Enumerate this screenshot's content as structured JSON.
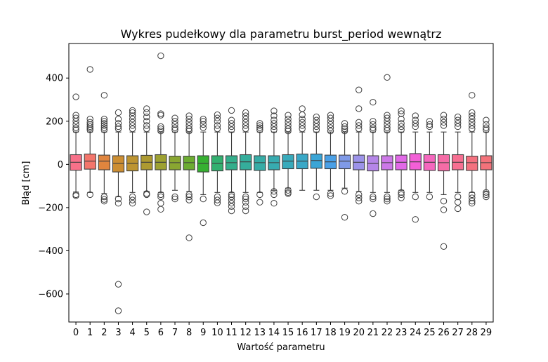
{
  "chart_data": {
    "type": "box",
    "title": "Wykres pudełkowy dla parametru burst_period wewnątrz",
    "xlabel": "Wartość parametru",
    "ylabel": "Błąd [cm]",
    "ylim": [
      -730,
      560
    ],
    "yticks": [
      -600,
      -400,
      -200,
      0,
      200,
      400
    ],
    "grid": false,
    "categories": [
      "0",
      "1",
      "2",
      "3",
      "4",
      "5",
      "6",
      "7",
      "8",
      "9",
      "10",
      "11",
      "12",
      "13",
      "14",
      "15",
      "16",
      "17",
      "18",
      "19",
      "20",
      "21",
      "22",
      "23",
      "24",
      "25",
      "26",
      "27",
      "28",
      "29"
    ],
    "colors": [
      "#f77189",
      "#f3756b",
      "#e0853e",
      "#cc8e32",
      "#bd9431",
      "#ad9a31",
      "#9da131",
      "#89a631",
      "#6cac31",
      "#36b031",
      "#33b070",
      "#34ae8b",
      "#35ad9b",
      "#36aca6",
      "#37abb0",
      "#38aabb",
      "#39a8c7",
      "#3ba5d6",
      "#4aa0e6",
      "#7f9ae8",
      "#9c93e9",
      "#b586e8",
      "#cd78e8",
      "#e169e7",
      "#f35fd7",
      "#f568be",
      "#f56ca6",
      "#f66f91",
      "#f3717f",
      "#f4727a"
    ],
    "boxes": [
      {
        "q1": -27,
        "median": 10,
        "q3": 45,
        "whislo": -128,
        "whishi": 150,
        "outliers": [
          313,
          228,
          215,
          200,
          185,
          170,
          160,
          -140,
          -145
        ]
      },
      {
        "q1": -22,
        "median": 15,
        "q3": 48,
        "whislo": -130,
        "whishi": 150,
        "outliers": [
          440,
          210,
          195,
          185,
          175,
          168,
          160,
          -140
        ]
      },
      {
        "q1": -25,
        "median": 15,
        "q3": 43,
        "whislo": -135,
        "whishi": 150,
        "outliers": [
          320,
          210,
          200,
          190,
          180,
          170,
          160,
          -150,
          -162,
          -170
        ]
      },
      {
        "q1": -35,
        "median": 5,
        "q3": 40,
        "whislo": -150,
        "whishi": 150,
        "outliers": [
          240,
          210,
          190,
          175,
          165,
          -160,
          -180,
          -555,
          -678
        ]
      },
      {
        "q1": -30,
        "median": 5,
        "q3": 40,
        "whislo": -130,
        "whishi": 150,
        "outliers": [
          250,
          240,
          225,
          210,
          195,
          180,
          165,
          -150,
          -165,
          -180
        ]
      },
      {
        "q1": -25,
        "median": 10,
        "q3": 42,
        "whislo": -125,
        "whishi": 150,
        "outliers": [
          258,
          240,
          220,
          200,
          180,
          165,
          -135,
          -140,
          -220
        ]
      },
      {
        "q1": -25,
        "median": 10,
        "q3": 45,
        "whislo": -130,
        "whishi": 150,
        "outliers": [
          503,
          235,
          228,
          175,
          165,
          155,
          -140,
          -150,
          -180,
          -208
        ]
      },
      {
        "q1": -25,
        "median": 8,
        "q3": 38,
        "whislo": -120,
        "whishi": 150,
        "outliers": [
          215,
          200,
          185,
          170,
          160,
          -150,
          -160
        ]
      },
      {
        "q1": -25,
        "median": 8,
        "q3": 38,
        "whislo": -125,
        "whishi": 150,
        "outliers": [
          225,
          210,
          195,
          180,
          165,
          155,
          -140,
          -150,
          -165,
          -340
        ]
      },
      {
        "q1": -35,
        "median": 5,
        "q3": 40,
        "whislo": -140,
        "whishi": 150,
        "outliers": [
          210,
          200,
          185,
          170,
          -160,
          -270
        ]
      },
      {
        "q1": -30,
        "median": 5,
        "q3": 40,
        "whislo": -130,
        "whishi": 150,
        "outliers": [
          230,
          215,
          200,
          180,
          165,
          -150,
          -165,
          -178
        ]
      },
      {
        "q1": -25,
        "median": 8,
        "q3": 40,
        "whislo": -130,
        "whishi": 150,
        "outliers": [
          250,
          205,
          190,
          175,
          160,
          -140,
          -150,
          -165,
          -180,
          -195,
          -215
        ]
      },
      {
        "q1": -25,
        "median": 12,
        "q3": 45,
        "whislo": -130,
        "whishi": 150,
        "outliers": [
          240,
          225,
          210,
          195,
          180,
          165,
          -150,
          -160,
          -175,
          -195,
          -215
        ]
      },
      {
        "q1": -28,
        "median": 8,
        "q3": 40,
        "whislo": -130,
        "whishi": 150,
        "outliers": [
          190,
          180,
          170,
          160,
          -140,
          -175
        ]
      },
      {
        "q1": -25,
        "median": 8,
        "q3": 40,
        "whislo": -120,
        "whishi": 150,
        "outliers": [
          248,
          225,
          205,
          190,
          175,
          160,
          -125,
          -140,
          -180
        ]
      },
      {
        "q1": -20,
        "median": 15,
        "q3": 45,
        "whislo": -110,
        "whishi": 150,
        "outliers": [
          228,
          210,
          195,
          180,
          165,
          155,
          -120,
          -130,
          -135
        ]
      },
      {
        "q1": -20,
        "median": 15,
        "q3": 48,
        "whislo": -120,
        "whishi": 150,
        "outliers": [
          258,
          230,
          210,
          195,
          180,
          165
        ]
      },
      {
        "q1": -18,
        "median": 18,
        "q3": 48,
        "whislo": -120,
        "whishi": 150,
        "outliers": [
          220,
          205,
          190,
          175,
          160,
          -150
        ]
      },
      {
        "q1": -20,
        "median": 12,
        "q3": 43,
        "whislo": -120,
        "whishi": 150,
        "outliers": [
          228,
          215,
          200,
          185,
          170,
          155,
          -135,
          -145
        ]
      },
      {
        "q1": -20,
        "median": 15,
        "q3": 43,
        "whislo": -110,
        "whishi": 150,
        "outliers": [
          190,
          175,
          165,
          155,
          -125,
          -245
        ]
      },
      {
        "q1": -25,
        "median": 10,
        "q3": 43,
        "whislo": -125,
        "whishi": 150,
        "outliers": [
          345,
          258,
          195,
          180,
          165,
          -140,
          -155,
          -170
        ]
      },
      {
        "q1": -30,
        "median": 5,
        "q3": 40,
        "whislo": -130,
        "whishi": 150,
        "outliers": [
          288,
          200,
          185,
          170,
          160,
          -150,
          -160,
          -228
        ]
      },
      {
        "q1": -25,
        "median": 8,
        "q3": 40,
        "whislo": -130,
        "whishi": 150,
        "outliers": [
          403,
          228,
          215,
          200,
          185,
          170,
          158,
          -150,
          -160,
          -170
        ]
      },
      {
        "q1": -25,
        "median": 10,
        "q3": 43,
        "whislo": -120,
        "whishi": 150,
        "outliers": [
          248,
          235,
          210,
          190,
          175,
          160,
          -130,
          -140,
          -155
        ]
      },
      {
        "q1": -25,
        "median": 12,
        "q3": 50,
        "whislo": -130,
        "whishi": 150,
        "outliers": [
          225,
          205,
          190,
          175,
          -150,
          -255
        ]
      },
      {
        "q1": -28,
        "median": 10,
        "q3": 45,
        "whislo": -130,
        "whishi": 150,
        "outliers": [
          200,
          185,
          175,
          -150
        ]
      },
      {
        "q1": -30,
        "median": 8,
        "q3": 45,
        "whislo": -140,
        "whishi": 150,
        "outliers": [
          228,
          210,
          195,
          180,
          -170,
          -210,
          -380
        ]
      },
      {
        "q1": -25,
        "median": 10,
        "q3": 45,
        "whislo": -130,
        "whishi": 150,
        "outliers": [
          220,
          205,
          190,
          175,
          -150,
          -175,
          -205
        ]
      },
      {
        "q1": -28,
        "median": 8,
        "q3": 38,
        "whislo": -130,
        "whishi": 150,
        "outliers": [
          320,
          240,
          225,
          210,
          195,
          180,
          165,
          -140,
          -155,
          -170,
          -180
        ]
      },
      {
        "q1": -25,
        "median": 8,
        "q3": 40,
        "whislo": -125,
        "whishi": 150,
        "outliers": [
          205,
          185,
          170,
          160,
          -130,
          -140,
          -150
        ]
      }
    ]
  }
}
